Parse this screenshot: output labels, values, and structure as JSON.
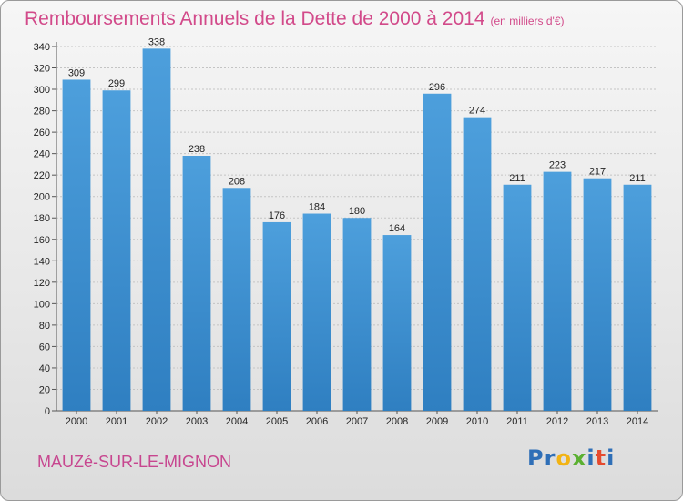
{
  "chart_data": {
    "type": "bar",
    "title": "Remboursements Annuels de la Dette de 2000 à 2014",
    "subtitle": "(en milliers d'€)",
    "categories": [
      "2000",
      "2001",
      "2002",
      "2003",
      "2004",
      "2005",
      "2006",
      "2007",
      "2008",
      "2009",
      "2010",
      "2011",
      "2012",
      "2013",
      "2014"
    ],
    "values": [
      309,
      299,
      338,
      238,
      208,
      176,
      184,
      180,
      164,
      296,
      274,
      211,
      223,
      217,
      211
    ],
    "ylim": [
      0,
      340
    ],
    "yticks": [
      0,
      20,
      40,
      60,
      80,
      100,
      120,
      140,
      160,
      180,
      200,
      220,
      240,
      260,
      280,
      300,
      320,
      340
    ],
    "grid": true,
    "bar_color": "#4d9fdc",
    "bar_color_dark": "#2f7fc1"
  },
  "commune": "MAUZé-SUR-LE-MIGNON",
  "logo": {
    "letters": [
      "P",
      "r",
      "o",
      "x",
      "i",
      "t",
      "i"
    ],
    "colors": [
      "#2f6fb7",
      "#2f6fb7",
      "#f2b313",
      "#5bb031",
      "#2f6fb7",
      "#e64a2e",
      "#2f6fb7"
    ]
  },
  "colors": {
    "title": "#d24a8a",
    "commune": "#c7468f"
  }
}
